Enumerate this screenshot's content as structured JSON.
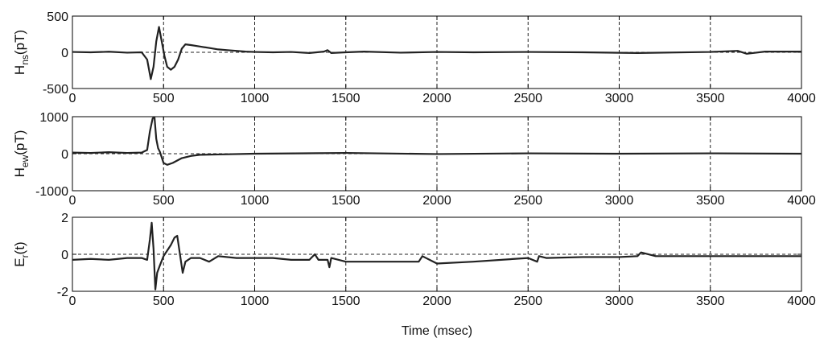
{
  "chart_data": [
    {
      "type": "line",
      "ylabel": {
        "main": "H",
        "sub": "ns",
        "rest": "(pT)"
      },
      "xlim": [
        0,
        4000
      ],
      "ylim": [
        -500,
        500
      ],
      "xticks": [
        "0",
        "500",
        "1000",
        "1500",
        "2000",
        "2500",
        "3000",
        "3500",
        "4000"
      ],
      "yticks": [
        "500",
        "0",
        "-500"
      ],
      "grid": "vertical dashed",
      "series": [
        {
          "x": [
            0,
            100,
            200,
            300,
            380,
            410,
            430,
            445,
            460,
            475,
            490,
            505,
            520,
            540,
            560,
            580,
            600,
            620,
            650,
            700,
            750,
            800,
            850,
            900,
            950,
            1000,
            1100,
            1200,
            1300,
            1380,
            1400,
            1420,
            1500,
            1600,
            1800,
            2000,
            2200,
            2500,
            2800,
            3100,
            3500,
            3650,
            3700,
            3800,
            4000
          ],
          "values": [
            5,
            0,
            8,
            -5,
            0,
            -100,
            -370,
            -200,
            150,
            350,
            150,
            -50,
            -200,
            -240,
            -200,
            -100,
            50,
            110,
            100,
            80,
            60,
            40,
            30,
            20,
            10,
            5,
            0,
            5,
            -10,
            10,
            30,
            -10,
            0,
            10,
            -5,
            5,
            0,
            5,
            0,
            -10,
            5,
            20,
            -20,
            10,
            10
          ]
        }
      ]
    },
    {
      "type": "line",
      "ylabel": {
        "main": "H",
        "sub": "ew",
        "rest": "(pT)"
      },
      "xlim": [
        0,
        4000
      ],
      "ylim": [
        -1000,
        1000
      ],
      "xticks": [
        "0",
        "500",
        "1000",
        "1500",
        "2000",
        "2500",
        "3000",
        "3500",
        "4000"
      ],
      "yticks": [
        "1000",
        "0",
        "-1000"
      ],
      "grid": "vertical dashed",
      "series": [
        {
          "x": [
            0,
            100,
            200,
            300,
            380,
            410,
            425,
            440,
            450,
            460,
            470,
            480,
            490,
            500,
            520,
            550,
            600,
            650,
            700,
            800,
            1000,
            1500,
            2000,
            2500,
            3000,
            3500,
            4000
          ],
          "values": [
            30,
            20,
            40,
            20,
            30,
            100,
            600,
            950,
            1000,
            400,
            150,
            50,
            -100,
            -250,
            -300,
            -250,
            -120,
            -60,
            -30,
            -20,
            0,
            20,
            -10,
            10,
            0,
            10,
            0
          ]
        }
      ]
    },
    {
      "type": "line",
      "ylabel": {
        "main": "E",
        "sub": "r",
        "rest": "(t)"
      },
      "xlabel": "Time (msec)",
      "xlim": [
        0,
        4000
      ],
      "ylim": [
        -2,
        2
      ],
      "xticks": [
        "0",
        "500",
        "1000",
        "1500",
        "2000",
        "2500",
        "3000",
        "3500",
        "4000"
      ],
      "yticks": [
        "2",
        "0",
        "-2"
      ],
      "grid": "vertical dashed",
      "series": [
        {
          "x": [
            0,
            100,
            200,
            300,
            380,
            410,
            425,
            435,
            445,
            455,
            465,
            480,
            500,
            520,
            540,
            560,
            575,
            590,
            605,
            620,
            650,
            700,
            750,
            800,
            900,
            1000,
            1100,
            1200,
            1300,
            1330,
            1350,
            1400,
            1410,
            1420,
            1500,
            1600,
            1800,
            1900,
            1920,
            2000,
            2200,
            2500,
            2550,
            2560,
            2600,
            2800,
            3000,
            3100,
            3120,
            3200,
            3500,
            4000
          ],
          "values": [
            -0.3,
            -0.25,
            -0.3,
            -0.2,
            -0.2,
            -0.3,
            0.8,
            1.7,
            0.3,
            -1.9,
            -1.0,
            -0.6,
            -0.1,
            0.2,
            0.5,
            0.9,
            1.0,
            0.0,
            -1.0,
            -0.4,
            -0.2,
            -0.2,
            -0.4,
            -0.1,
            -0.2,
            -0.2,
            -0.2,
            -0.3,
            -0.3,
            0.0,
            -0.3,
            -0.3,
            -0.7,
            -0.2,
            -0.4,
            -0.4,
            -0.4,
            -0.4,
            -0.1,
            -0.5,
            -0.4,
            -0.2,
            -0.4,
            -0.1,
            -0.2,
            -0.15,
            -0.15,
            -0.1,
            0.1,
            -0.1,
            -0.1,
            -0.1
          ]
        }
      ]
    }
  ]
}
